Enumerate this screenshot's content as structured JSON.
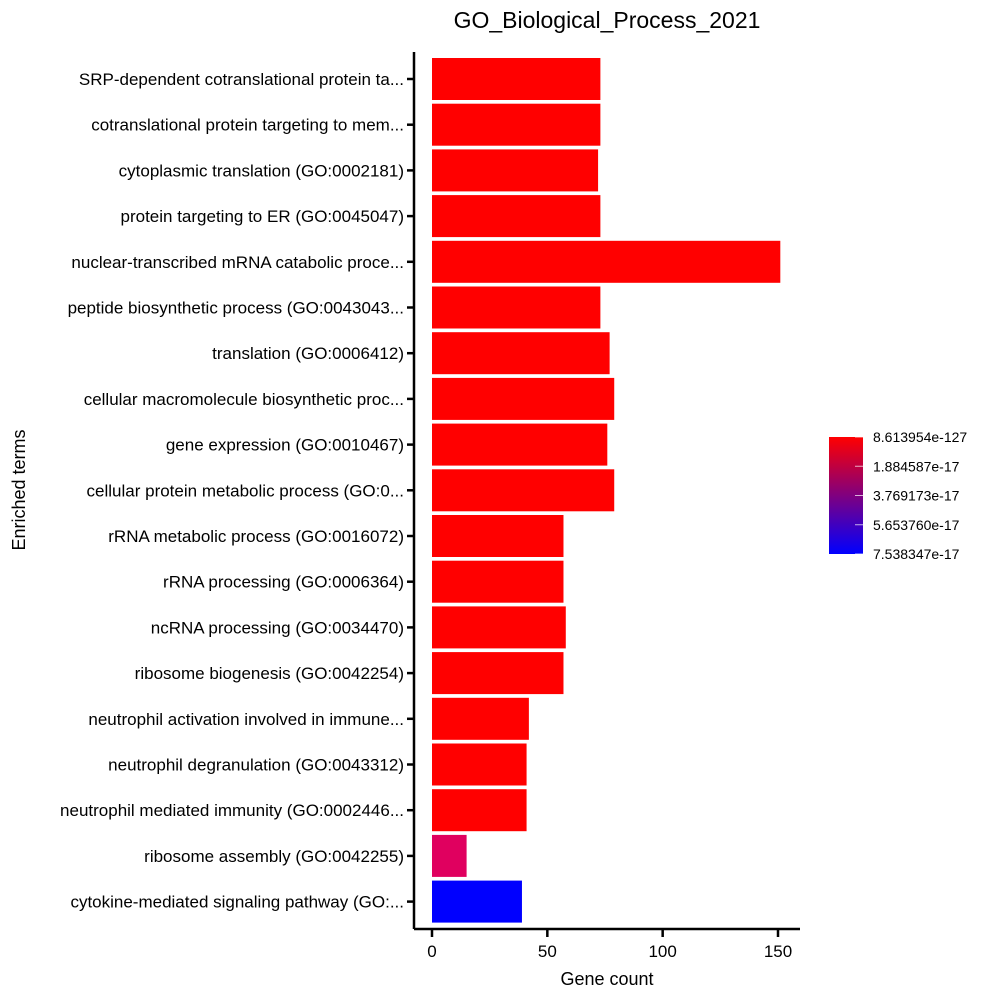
{
  "chart_data": {
    "type": "bar",
    "orientation": "horizontal",
    "title": "GO_Biological_Process_2021",
    "xlabel": "Gene count",
    "ylabel": "Enriched terms",
    "xlim": [
      0,
      160
    ],
    "xticks": [
      0,
      50,
      100,
      150
    ],
    "grid": false,
    "categories": [
      "SRP-dependent cotranslational protein ta...",
      "cotranslational protein targeting to mem...",
      "cytoplasmic translation (GO:0002181)",
      "protein targeting to ER (GO:0045047)",
      "nuclear-transcribed mRNA catabolic proce...",
      "peptide biosynthetic process (GO:0043043...",
      "translation (GO:0006412)",
      "cellular macromolecule biosynthetic proc...",
      "gene expression (GO:0010467)",
      "cellular protein metabolic process (GO:0...",
      "rRNA metabolic process (GO:0016072)",
      "rRNA processing (GO:0006364)",
      "ncRNA processing (GO:0034470)",
      "ribosome biogenesis (GO:0042254)",
      "neutrophil activation involved in immune...",
      "neutrophil degranulation (GO:0043312)",
      "neutrophil mediated immunity (GO:0002446...",
      "ribosome assembly (GO:0042255)",
      "cytokine-mediated signaling pathway (GO:..."
    ],
    "values": [
      73,
      73,
      72,
      73,
      151,
      73,
      77,
      79,
      76,
      79,
      57,
      57,
      58,
      57,
      42,
      41,
      41,
      15,
      39
    ],
    "bar_colors": [
      "#ff0000",
      "#ff0000",
      "#ff0000",
      "#ff0000",
      "#ff0000",
      "#ff0000",
      "#ff0000",
      "#ff0000",
      "#ff0000",
      "#ff0000",
      "#ff0000",
      "#ff0000",
      "#ff0000",
      "#ff0000",
      "#ff0000",
      "#ff0000",
      "#ff0000",
      "#e0005f",
      "#0000ff"
    ],
    "colorbar": {
      "placement": "right",
      "colors": [
        "#ff0000",
        "#0000ff"
      ],
      "labels": [
        "8.613954e-127",
        "1.884587e-17",
        "3.769173e-17",
        "5.653760e-17",
        "7.538347e-17"
      ]
    }
  }
}
